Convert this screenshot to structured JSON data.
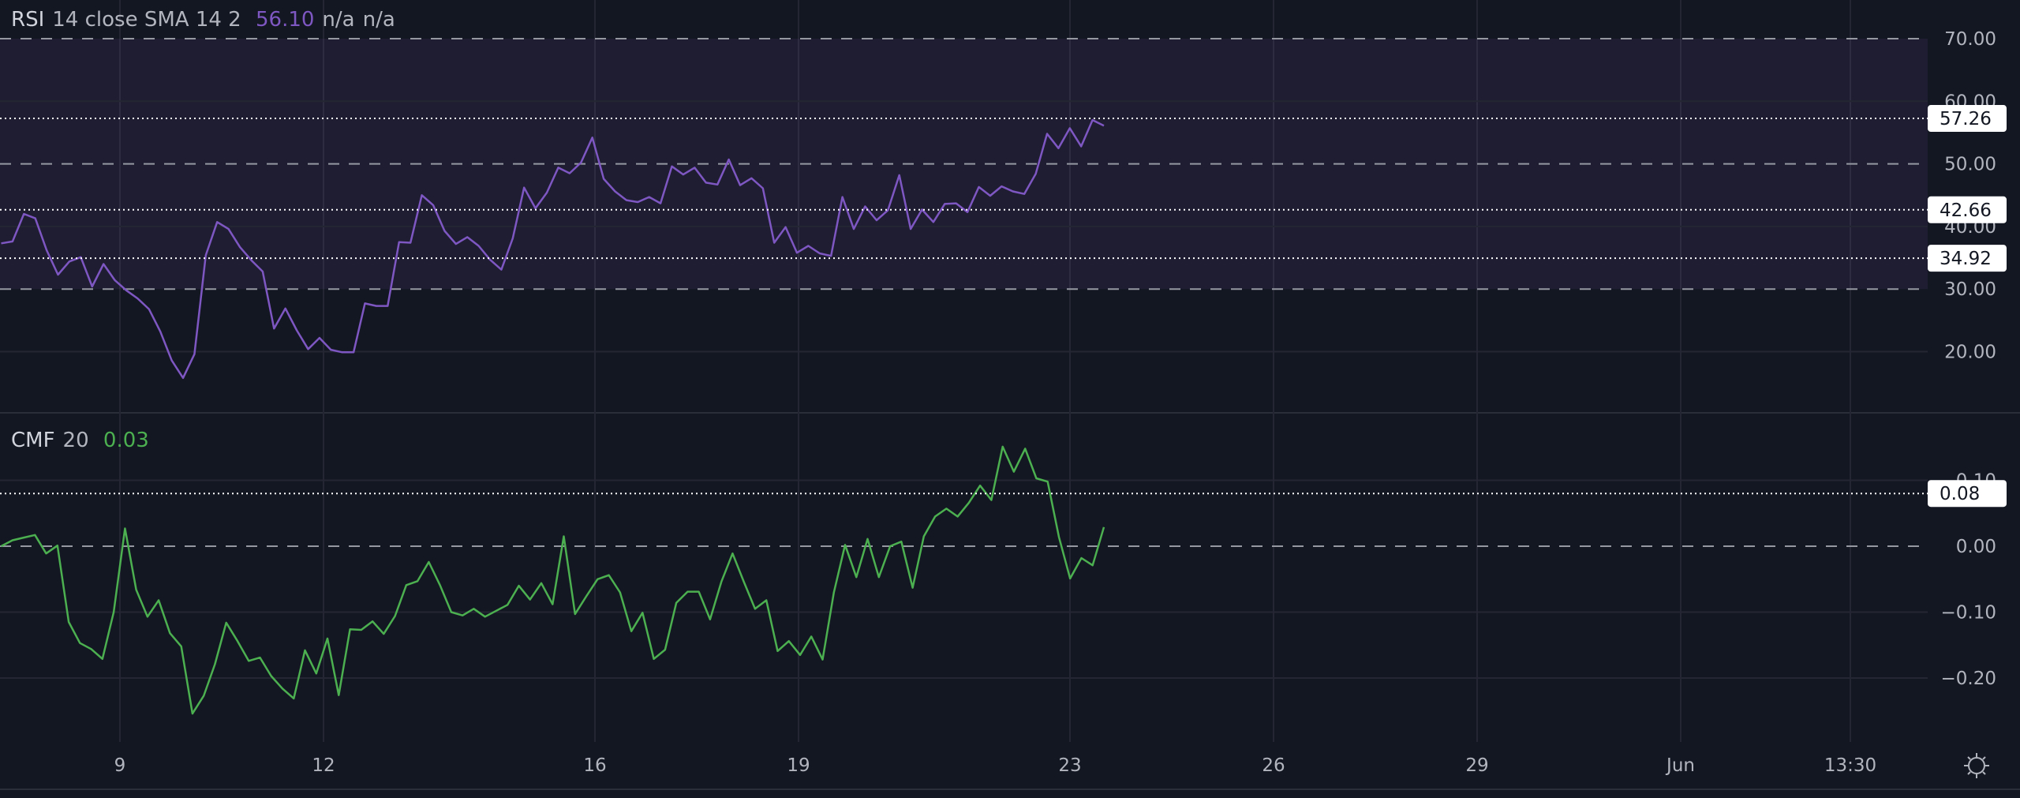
{
  "colors": {
    "background": "#131722",
    "rsi_line": "#7e57c2",
    "rsi_band": "#7e57c2",
    "cmf_line": "#4caf50",
    "grid": "#242733",
    "axis_text": "#b2b5be",
    "label_bg": "#ffffff"
  },
  "rsi_legend": {
    "name": "RSI",
    "params": "14 close SMA 14 2",
    "value": "56.10",
    "extra1": "n/a",
    "extra2": "n/a"
  },
  "cmf_legend": {
    "name": "CMF",
    "params": "20",
    "value": "0.03"
  },
  "settings_icon": "gear-icon",
  "chart_data": [
    {
      "type": "line",
      "title": "RSI 14 close SMA 14 2",
      "ylim": [
        10,
        73
      ],
      "y_ticks": [
        "70.00",
        "60.00",
        "50.00",
        "40.00",
        "30.00",
        "20.00"
      ],
      "y_tick_values": [
        70,
        60,
        50,
        40,
        30,
        20
      ],
      "band": [
        30,
        70
      ],
      "dashed_levels": [
        70,
        50,
        30
      ],
      "horizontal_lines": [
        {
          "value": 57.26,
          "label": "57.26"
        },
        {
          "value": 42.66,
          "label": "42.66"
        },
        {
          "value": 34.92,
          "label": "34.92"
        }
      ],
      "grid": true,
      "series": [
        {
          "values": [
            37.3,
            37.6,
            42.0,
            41.3,
            36.2,
            32.3,
            34.4,
            35.1,
            30.4,
            34.0,
            31.4,
            29.8,
            28.5,
            26.8,
            23.2,
            18.6,
            15.8,
            19.6,
            35.4,
            40.7,
            39.6,
            36.7,
            34.6,
            32.8,
            23.7,
            26.9,
            23.4,
            20.4,
            22.2,
            20.3,
            19.9,
            19.9,
            27.7,
            27.3,
            27.3,
            37.5,
            37.4,
            45.0,
            43.4,
            39.3,
            37.2,
            38.3,
            36.9,
            34.7,
            33.1,
            38.1,
            46.2,
            42.9,
            45.4,
            49.4,
            48.5,
            50.2,
            54.2,
            47.6,
            45.6,
            44.2,
            43.9,
            44.7,
            43.7,
            49.6,
            48.3,
            49.4,
            47.0,
            46.7,
            50.7,
            46.6,
            47.7,
            46.1,
            37.4,
            39.9,
            35.8,
            36.9,
            35.7,
            35.3,
            44.7,
            39.6,
            43.2,
            41.0,
            42.6,
            48.2,
            39.6,
            42.7,
            40.7,
            43.6,
            43.7,
            42.3,
            46.3,
            44.9,
            46.4,
            45.6,
            45.2,
            48.4,
            54.8,
            52.5,
            55.7,
            52.8,
            57.0,
            56.1
          ]
        }
      ]
    },
    {
      "type": "line",
      "title": "CMF 20",
      "ylim": [
        -0.3,
        0.15
      ],
      "y_ticks": [
        "0.10",
        "0.00",
        "−0.10",
        "−0.20"
      ],
      "y_tick_values": [
        0.1,
        0,
        -0.1,
        -0.2
      ],
      "dashed_levels": [
        0
      ],
      "horizontal_lines": [
        {
          "value": 0.08,
          "label": "0.08"
        }
      ],
      "grid": true,
      "series": [
        {
          "values": [
            0.0,
            0.009,
            0.013,
            0.017,
            -0.011,
            0.001,
            -0.115,
            -0.147,
            -0.156,
            -0.171,
            -0.1,
            0.027,
            -0.066,
            -0.107,
            -0.082,
            -0.132,
            -0.152,
            -0.254,
            -0.227,
            -0.179,
            -0.116,
            -0.144,
            -0.174,
            -0.169,
            -0.197,
            -0.216,
            -0.231,
            -0.158,
            -0.193,
            -0.14,
            -0.226,
            -0.126,
            -0.127,
            -0.114,
            -0.133,
            -0.106,
            -0.059,
            -0.053,
            -0.024,
            -0.059,
            -0.1,
            -0.105,
            -0.095,
            -0.107,
            -0.098,
            -0.089,
            -0.06,
            -0.081,
            -0.056,
            -0.088,
            0.015,
            -0.103,
            -0.076,
            -0.05,
            -0.044,
            -0.07,
            -0.129,
            -0.101,
            -0.171,
            -0.157,
            -0.086,
            -0.069,
            -0.069,
            -0.111,
            -0.054,
            -0.011,
            -0.054,
            -0.095,
            -0.082,
            -0.159,
            -0.144,
            -0.165,
            -0.137,
            -0.172,
            -0.07,
            0.002,
            -0.047,
            0.011,
            -0.047,
            0.0,
            0.007,
            -0.063,
            0.015,
            0.045,
            0.057,
            0.045,
            0.066,
            0.092,
            0.07,
            0.151,
            0.113,
            0.148,
            0.103,
            0.098,
            0.014,
            -0.049,
            -0.018,
            -0.029,
            0.029
          ]
        }
      ]
    }
  ],
  "x_axis": {
    "tick_labels": [
      "9",
      "12",
      "16",
      "19",
      "23",
      "26",
      "29",
      "Jun",
      "13:30"
    ],
    "tick_days": [
      9,
      12,
      16,
      19,
      23,
      26,
      29,
      32,
      34.5
    ],
    "data_start_day": 7.25,
    "data_end_day": 23.5
  }
}
